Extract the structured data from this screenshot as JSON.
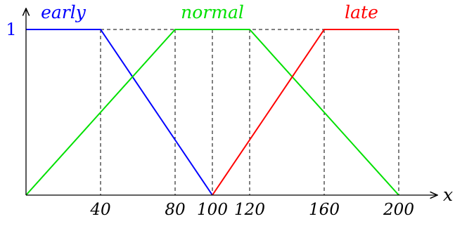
{
  "chart_data": {
    "type": "line",
    "xlabel": "x",
    "ylabel": "",
    "xlim": [
      0,
      205
    ],
    "ylim": [
      0,
      1
    ],
    "x_ticks": [
      "40",
      "80",
      "100",
      "120",
      "160",
      "200"
    ],
    "x_tick_values": [
      40,
      80,
      100,
      120,
      160,
      200
    ],
    "y_ticks": [
      "1"
    ],
    "y_tick_values": [
      1
    ],
    "grid": false,
    "series": [
      {
        "name": "early",
        "color": "#0000ff",
        "x": [
          0,
          40,
          100
        ],
        "y": [
          1,
          1,
          0
        ]
      },
      {
        "name": "normal",
        "color": "#00e000",
        "x": [
          0,
          80,
          120,
          200
        ],
        "y": [
          0,
          1,
          1,
          0
        ]
      },
      {
        "name": "late",
        "color": "#ff0000",
        "x": [
          100,
          160,
          200
        ],
        "y": [
          0,
          1,
          1
        ]
      }
    ],
    "ytick_color": "#0000ff"
  }
}
